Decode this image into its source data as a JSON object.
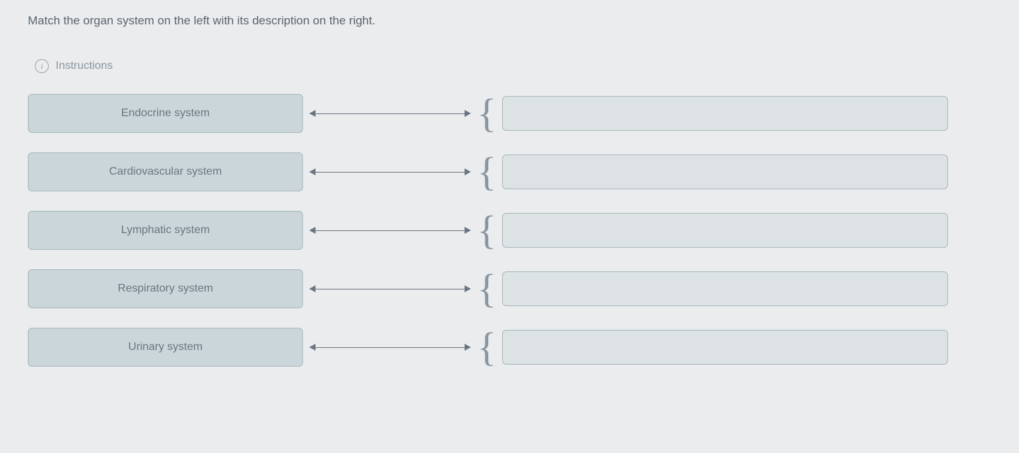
{
  "question": {
    "prompt": "Match the organ system on the left with its description on the right."
  },
  "instructions": {
    "label": "Instructions"
  },
  "match_items": [
    {
      "label": "Endocrine system"
    },
    {
      "label": "Cardiovascular system"
    },
    {
      "label": "Lymphatic system"
    },
    {
      "label": "Respiratory system"
    },
    {
      "label": "Urinary system"
    }
  ],
  "colors": {
    "background": "#eaeced",
    "left_box_bg": "#cad6d9",
    "right_box_bg": "#dde2e4",
    "border": "#a8b8bd",
    "text_primary": "#5a6570",
    "text_secondary": "#8a95a0",
    "connector": "#6a7580"
  }
}
